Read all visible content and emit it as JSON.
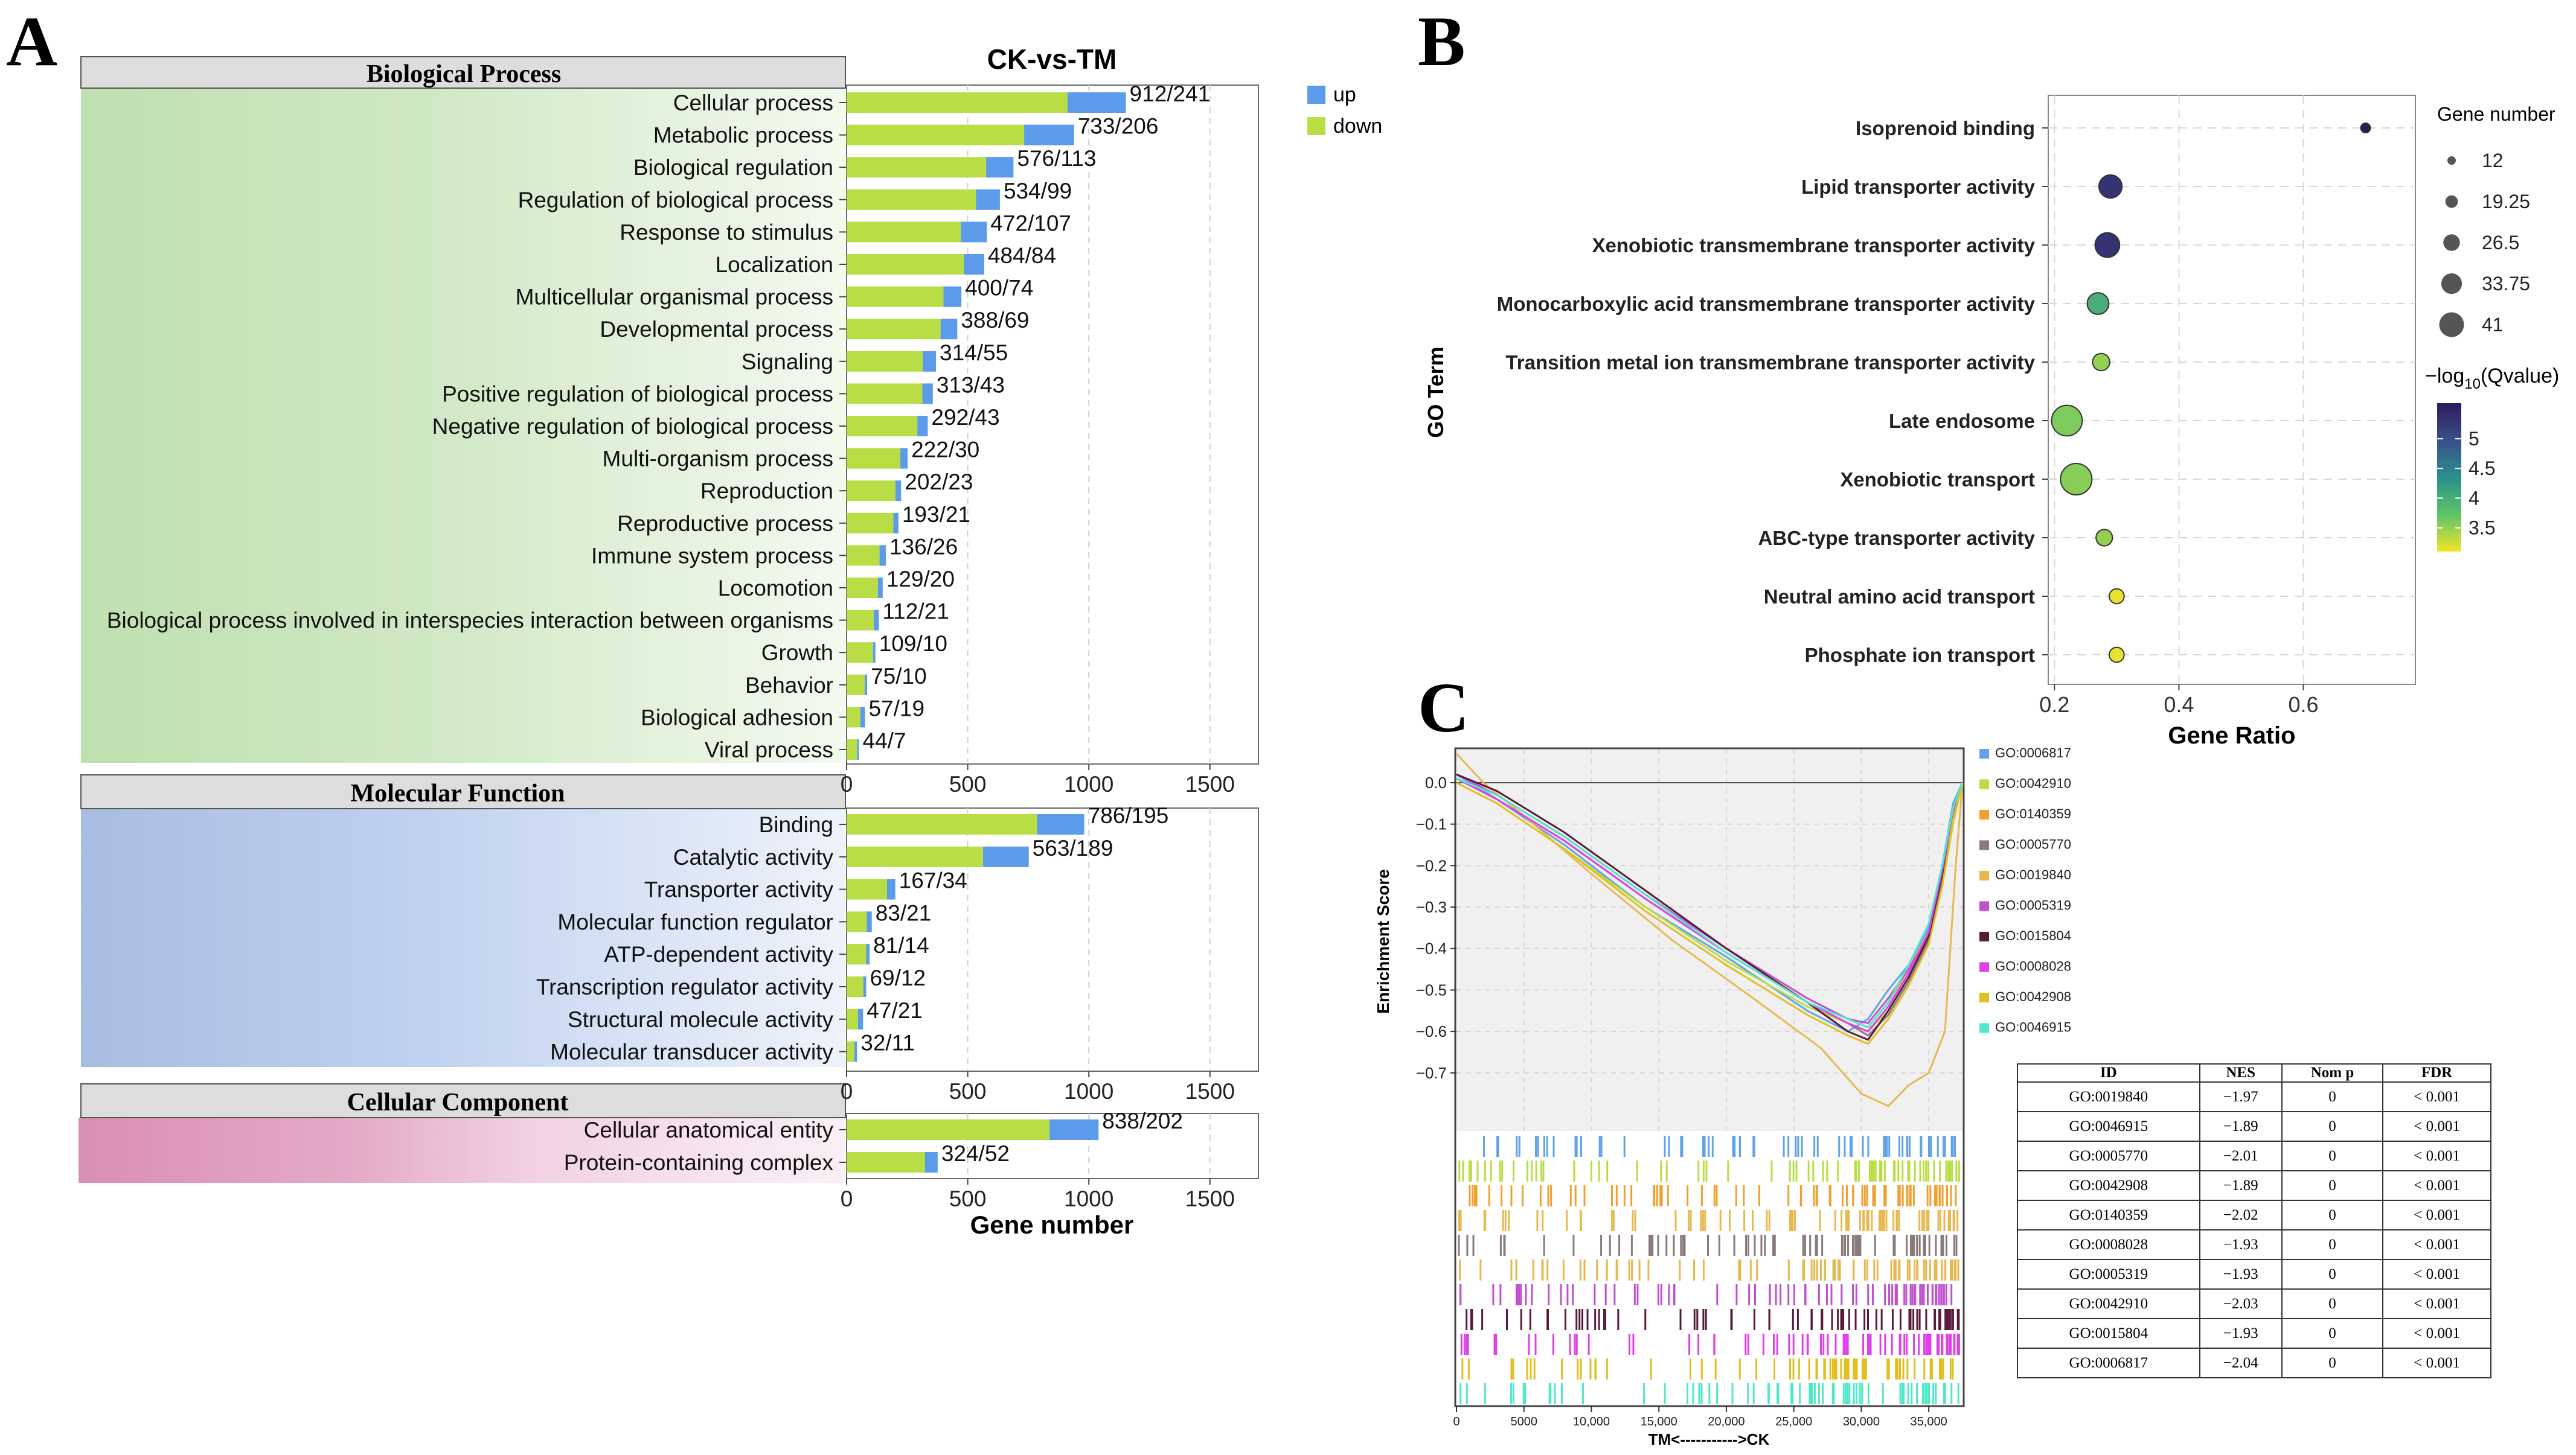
{
  "panels": {
    "a": "A",
    "b": "B",
    "c": "C"
  },
  "colors": {
    "up": "#5b9bea",
    "down": "#b9dd45",
    "header": "#dddddd",
    "grid": "#d0d0d0"
  },
  "chart_data": [
    {
      "type": "bar",
      "title": "CK-vs-TM",
      "xlabel": "Gene number",
      "xlim": [
        0,
        1700
      ],
      "xticks": [
        0,
        500,
        1000,
        1500
      ],
      "legend": [
        {
          "name": "up",
          "color": "#5b9bea"
        },
        {
          "name": "down",
          "color": "#b9dd45"
        }
      ],
      "legend_position": "top-right",
      "stacked": true,
      "sections": [
        {
          "name": "Biological Process",
          "categories": [
            "Cellular process",
            "Metabolic process",
            "Biological regulation",
            "Regulation of biological process",
            "Response to stimulus",
            "Localization",
            "Multicellular organismal process",
            "Developmental process",
            "Signaling",
            "Positive regulation of biological process",
            "Negative regulation of biological process",
            "Multi-organism process",
            "Reproduction",
            "Reproductive process",
            "Immune system process",
            "Locomotion",
            "Biological process involved in interspecies interaction between organisms",
            "Growth",
            "Behavior",
            "Biological adhesion",
            "Viral process"
          ],
          "labels": [
            "912/241",
            "733/206",
            "576/113",
            "534/99",
            "472/107",
            "484/84",
            "400/74",
            "388/69",
            "314/55",
            "313/43",
            "292/43",
            "222/30",
            "202/23",
            "193/21",
            "136/26",
            "129/20",
            "112/21",
            "109/10",
            "75/10",
            "57/19",
            "44/7"
          ],
          "series": [
            {
              "name": "down",
              "values": [
                912,
                733,
                576,
                534,
                472,
                484,
                400,
                388,
                314,
                313,
                292,
                222,
                202,
                193,
                136,
                129,
                112,
                109,
                75,
                57,
                44
              ]
            },
            {
              "name": "up",
              "values": [
                241,
                206,
                113,
                99,
                107,
                84,
                74,
                69,
                55,
                43,
                43,
                30,
                23,
                21,
                26,
                20,
                21,
                10,
                10,
                19,
                7
              ]
            }
          ]
        },
        {
          "name": "Molecular Function",
          "categories": [
            "Binding",
            "Catalytic activity",
            "Transporter activity",
            "Molecular function regulator",
            "ATP-dependent activity",
            "Transcription regulator activity",
            "Structural molecule activity",
            "Molecular transducer activity"
          ],
          "labels": [
            "786/195",
            "563/189",
            "167/34",
            "83/21",
            "81/14",
            "69/12",
            "47/21",
            "32/11"
          ],
          "series": [
            {
              "name": "down",
              "values": [
                786,
                563,
                167,
                83,
                81,
                69,
                47,
                32
              ]
            },
            {
              "name": "up",
              "values": [
                195,
                189,
                34,
                21,
                14,
                12,
                21,
                11
              ]
            }
          ]
        },
        {
          "name": "Cellular Component",
          "categories": [
            "Cellular anatomical entity",
            "Protein-containing complex"
          ],
          "labels": [
            "838/202",
            "324/52"
          ],
          "series": [
            {
              "name": "down",
              "values": [
                838,
                324
              ]
            },
            {
              "name": "up",
              "values": [
                202,
                52
              ]
            }
          ]
        }
      ]
    },
    {
      "type": "scatter",
      "xlabel": "Gene Ratio",
      "ylabel": "GO Term",
      "xlim": [
        0.19,
        0.78
      ],
      "xticks": [
        0.2,
        0.4,
        0.6
      ],
      "xtick_labels": [
        "0.2",
        "0.4",
        "0.6"
      ],
      "categories": [
        "Isoprenoid binding",
        "Lipid transporter activity",
        "Xenobiotic transmembrane transporter activity",
        "Monocarboxylic acid transmembrane transporter activity",
        "Transition metal ion transmembrane transporter activity",
        "Late endosome",
        "Xenobiotic transport",
        "ABC-type transporter activity",
        "Neutral amino acid transport",
        "Phosphate ion transport"
      ],
      "points": [
        {
          "x": 0.7,
          "size": 12,
          "q": 5.6
        },
        {
          "x": 0.29,
          "size": 30,
          "q": 5.3
        },
        {
          "x": 0.285,
          "size": 32,
          "q": 5.3
        },
        {
          "x": 0.27,
          "size": 28,
          "q": 4.0
        },
        {
          "x": 0.275,
          "size": 22,
          "q": 3.5
        },
        {
          "x": 0.22,
          "size": 40,
          "q": 3.6
        },
        {
          "x": 0.235,
          "size": 41,
          "q": 3.55
        },
        {
          "x": 0.28,
          "size": 21,
          "q": 3.5
        },
        {
          "x": 0.3,
          "size": 19,
          "q": 3.15
        },
        {
          "x": 0.3,
          "size": 19,
          "q": 3.15
        }
      ],
      "size_legend": {
        "title": "Gene number",
        "values": [
          12,
          19.25,
          26.5,
          33.75,
          41
        ],
        "labels": [
          "12",
          "19.25",
          "26.5",
          "33.75",
          "41"
        ]
      },
      "color_legend": {
        "title": "−log",
        "sub": "10",
        "rest": "(Qvalue)",
        "ticks": [
          5,
          4.5,
          4,
          3.5
        ],
        "tick_labels": [
          "5",
          "4.5",
          "4",
          "3.5"
        ],
        "range": [
          3.1,
          5.6
        ]
      }
    },
    {
      "type": "line",
      "ylabel": "Enrichment Score",
      "xlabel": "TM<----------->CK",
      "xlim": [
        0,
        37500
      ],
      "ylim": [
        -0.84,
        0.08
      ],
      "yticks": [
        0.0,
        -0.1,
        -0.2,
        -0.3,
        -0.4,
        -0.5,
        -0.6,
        -0.7
      ],
      "ytick_labels": [
        "0.0",
        "−0.1",
        "−0.2",
        "−0.3",
        "−0.4",
        "−0.5",
        "−0.6",
        "−0.7"
      ],
      "xticks": [
        0,
        5000,
        10000,
        15000,
        20000,
        25000,
        30000,
        35000
      ],
      "xtick_labels": [
        "0",
        "5000",
        "10,000",
        "15,000",
        "20,000",
        "25,000",
        "30,000",
        "35,000"
      ],
      "series": [
        {
          "name": "GO:0006817",
          "color": "#5fa3e8",
          "x": [
            0,
            3000,
            8000,
            14000,
            20000,
            26000,
            29000,
            30500,
            32000,
            33500,
            35000,
            36000,
            36800,
            37500
          ],
          "y": [
            0.02,
            -0.04,
            -0.15,
            -0.3,
            -0.42,
            -0.55,
            -0.6,
            -0.57,
            -0.5,
            -0.44,
            -0.35,
            -0.2,
            -0.05,
            0.0
          ]
        },
        {
          "name": "GO:0042910",
          "color": "#b9dd45",
          "x": [
            0,
            3000,
            8000,
            14000,
            20000,
            26000,
            29000,
            30500,
            32000,
            33500,
            35000,
            36000,
            36800,
            37500
          ],
          "y": [
            0.0,
            -0.05,
            -0.16,
            -0.3,
            -0.43,
            -0.54,
            -0.58,
            -0.6,
            -0.55,
            -0.47,
            -0.38,
            -0.25,
            -0.1,
            0.0
          ]
        },
        {
          "name": "GO:0140359",
          "color": "#f0a030",
          "x": [
            0,
            3000,
            8000,
            14000,
            20000,
            26000,
            29000,
            30500,
            32000,
            33500,
            35000,
            36000,
            36800,
            37500
          ],
          "y": [
            0.01,
            -0.03,
            -0.13,
            -0.27,
            -0.4,
            -0.52,
            -0.57,
            -0.59,
            -0.53,
            -0.45,
            -0.36,
            -0.22,
            -0.08,
            0.0
          ]
        },
        {
          "name": "GO:0005770",
          "color": "#8a7a7a",
          "x": [
            0,
            3000,
            8000,
            14000,
            20000,
            26000,
            29000,
            30500,
            32000,
            33500,
            35000,
            36000,
            36800,
            37500
          ],
          "y": [
            0.01,
            -0.04,
            -0.14,
            -0.28,
            -0.41,
            -0.53,
            -0.58,
            -0.61,
            -0.56,
            -0.48,
            -0.38,
            -0.23,
            -0.07,
            0.0
          ]
        },
        {
          "name": "GO:0019840",
          "color": "#e8b850",
          "x": [
            0,
            2000,
            5000,
            10000,
            16000,
            22000,
            27000,
            30000,
            32000,
            33500,
            35000,
            36200,
            37000,
            37500
          ],
          "y": [
            0.07,
            0.0,
            -0.08,
            -0.22,
            -0.38,
            -0.52,
            -0.64,
            -0.75,
            -0.78,
            -0.73,
            -0.7,
            -0.6,
            -0.2,
            0.0
          ]
        },
        {
          "name": "GO:0005319",
          "color": "#c050d0",
          "x": [
            0,
            3000,
            8000,
            14000,
            20000,
            26000,
            29000,
            30500,
            32000,
            33500,
            35000,
            36000,
            36800,
            37500
          ],
          "y": [
            0.02,
            -0.03,
            -0.13,
            -0.27,
            -0.4,
            -0.52,
            -0.57,
            -0.58,
            -0.52,
            -0.45,
            -0.37,
            -0.22,
            -0.07,
            0.0
          ]
        },
        {
          "name": "GO:0015804",
          "color": "#5a1a3a",
          "x": [
            0,
            3000,
            8000,
            14000,
            20000,
            26000,
            29000,
            30500,
            32000,
            33500,
            35000,
            36000,
            36800,
            37500
          ],
          "y": [
            0.02,
            -0.02,
            -0.12,
            -0.26,
            -0.4,
            -0.53,
            -0.6,
            -0.62,
            -0.55,
            -0.47,
            -0.37,
            -0.22,
            -0.06,
            0.0
          ]
        },
        {
          "name": "GO:0008028",
          "color": "#e040e8",
          "x": [
            0,
            3000,
            8000,
            14000,
            20000,
            26000,
            29000,
            30500,
            32000,
            33500,
            35000,
            36000,
            36800,
            37500
          ],
          "y": [
            0.01,
            -0.04,
            -0.14,
            -0.28,
            -0.41,
            -0.53,
            -0.58,
            -0.6,
            -0.54,
            -0.46,
            -0.36,
            -0.21,
            -0.07,
            0.0
          ]
        },
        {
          "name": "GO:0042908",
          "color": "#e0c020",
          "x": [
            0,
            3000,
            8000,
            14000,
            20000,
            26000,
            29000,
            30500,
            32000,
            33500,
            35000,
            36000,
            36800,
            37500
          ],
          "y": [
            0.0,
            -0.05,
            -0.16,
            -0.31,
            -0.44,
            -0.56,
            -0.61,
            -0.63,
            -0.57,
            -0.49,
            -0.39,
            -0.25,
            -0.09,
            0.0
          ]
        },
        {
          "name": "GO:0046915",
          "color": "#50e8c8",
          "x": [
            0,
            3000,
            8000,
            14000,
            20000,
            26000,
            29000,
            30500,
            32000,
            33500,
            35000,
            36000,
            36800,
            37500
          ],
          "y": [
            0.01,
            -0.03,
            -0.13,
            -0.27,
            -0.41,
            -0.53,
            -0.57,
            -0.59,
            -0.53,
            -0.44,
            -0.34,
            -0.2,
            -0.06,
            0.0
          ]
        }
      ],
      "rug_order": [
        "GO:0006817",
        "GO:0042910",
        "GO:0140359",
        "GO:0019840",
        "GO:0005770",
        "GO:0019840",
        "GO:0005319",
        "GO:0015804",
        "GO:0008028",
        "GO:0042908",
        "GO:0046915"
      ],
      "table": {
        "headers": [
          "ID",
          "NES",
          "Nom p",
          "FDR"
        ],
        "rows": [
          [
            "GO:0019840",
            "−1.97",
            "0",
            "< 0.001"
          ],
          [
            "GO:0046915",
            "−1.89",
            "0",
            "< 0.001"
          ],
          [
            "GO:0005770",
            "−2.01",
            "0",
            "< 0.001"
          ],
          [
            "GO:0042908",
            "−1.89",
            "0",
            "< 0.001"
          ],
          [
            "GO:0140359",
            "−2.02",
            "0",
            "< 0.001"
          ],
          [
            "GO:0008028",
            "−1.93",
            "0",
            "< 0.001"
          ],
          [
            "GO:0005319",
            "−1.93",
            "0",
            "< 0.001"
          ],
          [
            "GO:0042910",
            "−2.03",
            "0",
            "< 0.001"
          ],
          [
            "GO:0015804",
            "−1.93",
            "0",
            "< 0.001"
          ],
          [
            "GO:0006817",
            "−2.04",
            "0",
            "< 0.001"
          ]
        ]
      }
    }
  ]
}
